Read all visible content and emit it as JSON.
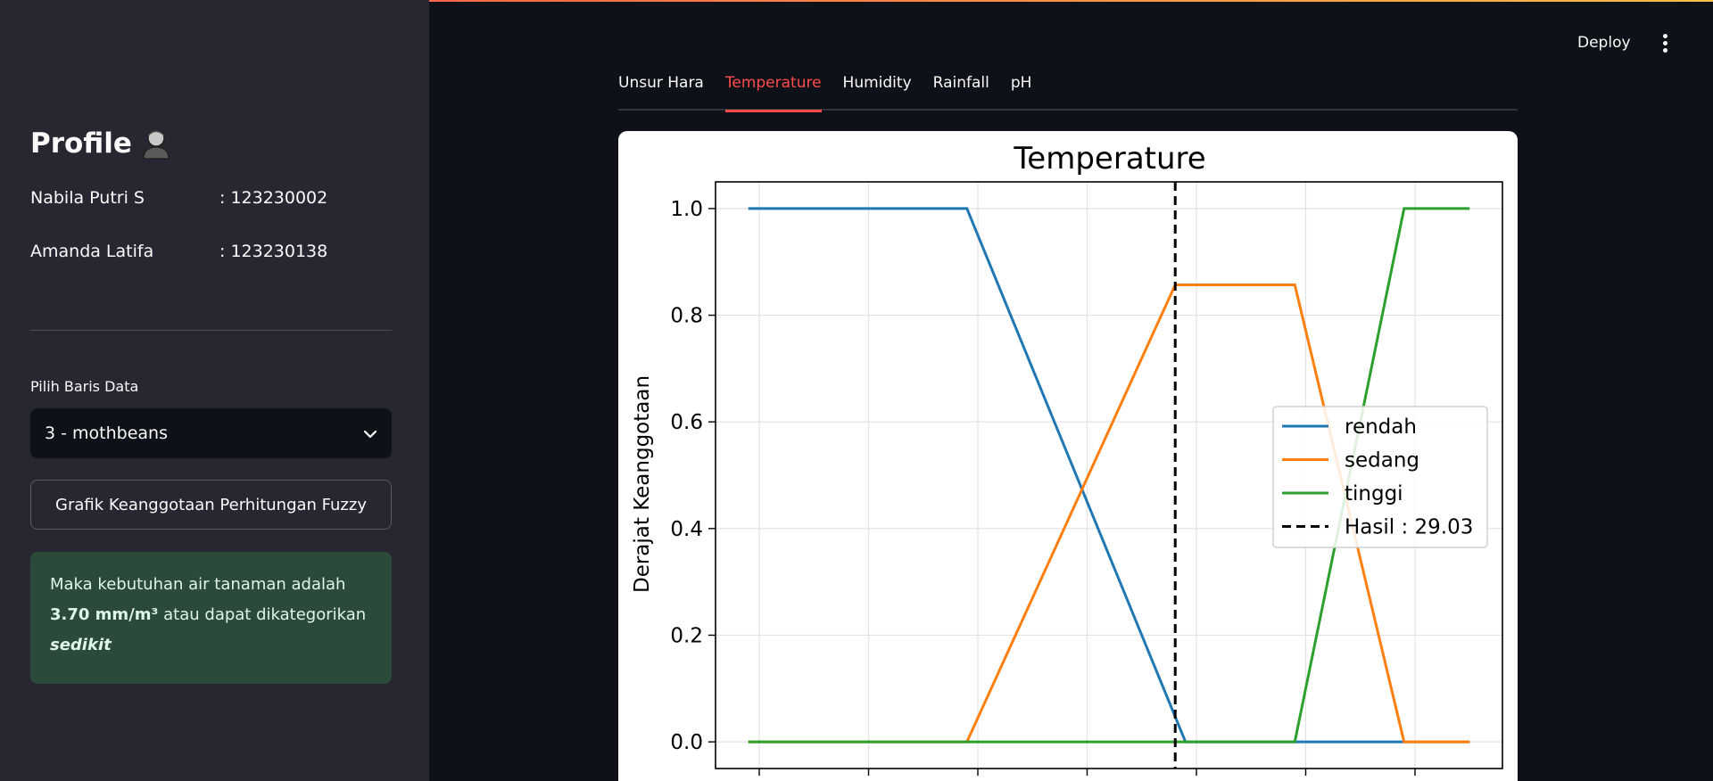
{
  "sidebar": {
    "profile_title": "Profile",
    "members": [
      {
        "name": "Nabila Putri S",
        "id": ": 123230002"
      },
      {
        "name": "Amanda Latifa",
        "id": ": 123230138"
      }
    ],
    "select_label": "Pilih Baris Data",
    "select_value": "3 - mothbeans",
    "button_label": "Grafik Keanggotaan Perhitungan Fuzzy",
    "alert": {
      "prefix": "Maka kebutuhan air tanaman adalah",
      "value": "3.70 mm/m³",
      "middle": "atau dapat dikategorikan",
      "category": "sedikit"
    }
  },
  "header": {
    "deploy_label": "Deploy"
  },
  "tabs": [
    {
      "label": "Unsur Hara",
      "active": false
    },
    {
      "label": "Temperature",
      "active": true
    },
    {
      "label": "Humidity",
      "active": false
    },
    {
      "label": "Rainfall",
      "active": false
    },
    {
      "label": "pH",
      "active": false
    }
  ],
  "colors": {
    "accent": "#ff4b4b",
    "rendah": "#1f77b4",
    "sedang": "#ff7f0e",
    "tinggi": "#2ca02c"
  },
  "chart_data": {
    "type": "line",
    "title": "Temperature",
    "ylabel": "Derajat Keanggotaan",
    "xlabel": "",
    "xlim": [
      8,
      44
    ],
    "ylim": [
      -0.05,
      1.05
    ],
    "yticks": [
      "0.0",
      "0.2",
      "0.4",
      "0.6",
      "0.8",
      "1.0"
    ],
    "grid": true,
    "legend_position": "center-right",
    "series": [
      {
        "name": "rendah",
        "x": [
          9.5,
          19.5,
          29.5,
          39.5,
          42.5
        ],
        "y": [
          1.0,
          1.0,
          0.0,
          0.0,
          0.0
        ]
      },
      {
        "name": "sedang",
        "x": [
          9.5,
          19.5,
          29.03,
          34.5,
          39.5,
          42.5
        ],
        "y": [
          0.0,
          0.0,
          0.857,
          0.857,
          0.0,
          0.0
        ]
      },
      {
        "name": "tinggi",
        "x": [
          9.5,
          34.5,
          39.5,
          42.5
        ],
        "y": [
          0.0,
          0.0,
          1.0,
          1.0
        ]
      }
    ],
    "vline": {
      "name": "Hasil : 29.03",
      "x": 29.03
    }
  }
}
